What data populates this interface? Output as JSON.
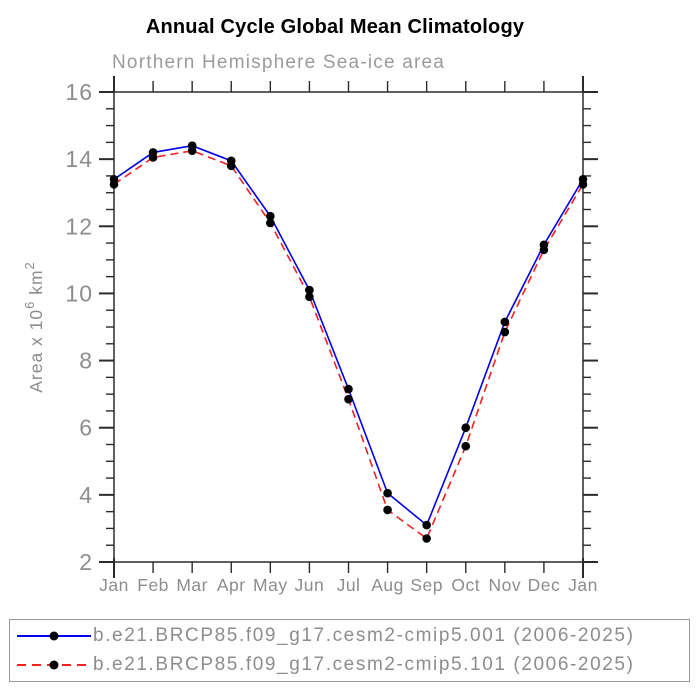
{
  "header": {
    "title": "Annual Cycle Global Mean Climatology",
    "subtitle": "Northern Hemisphere Sea-ice area"
  },
  "chart_data": {
    "type": "line",
    "x_categories": [
      "Jan",
      "Feb",
      "Mar",
      "Apr",
      "May",
      "Jun",
      "Jul",
      "Aug",
      "Sep",
      "Oct",
      "Nov",
      "Dec",
      "Jan"
    ],
    "ylabel": "Area x 10^6 km^2",
    "ylabel_parts": {
      "prefix": "Area x 10",
      "sup1": "6",
      "mid": " km",
      "sup2": "2"
    },
    "ylim": [
      2,
      16
    ],
    "yticks_major": [
      2,
      4,
      6,
      8,
      10,
      12,
      14,
      16
    ],
    "ytick_minor_step": 0.5,
    "grid": false,
    "legend_position": "bottom",
    "colors": {
      "axis": "#2b2b2b",
      "label_gray": "#8d8d8d",
      "marker": "#000000"
    },
    "series": [
      {
        "name": "b.e21.BRCP85.f09_g17.cesm2-cmip5.001 (2006-2025)",
        "color": "#0000ee",
        "dash": "solid",
        "marker": "black-dot",
        "values": [
          13.4,
          14.2,
          14.4,
          13.95,
          12.3,
          10.1,
          7.15,
          4.05,
          3.1,
          6.0,
          9.15,
          11.45,
          13.4
        ]
      },
      {
        "name": "b.e21.BRCP85.f09_g17.cesm2-cmip5.101 (2006-2025)",
        "color": "#f52121",
        "dash": "dashed",
        "marker": "black-dot",
        "values": [
          13.25,
          14.05,
          14.25,
          13.8,
          12.1,
          9.9,
          6.85,
          3.55,
          2.7,
          5.45,
          8.85,
          11.3,
          13.25
        ]
      }
    ]
  }
}
